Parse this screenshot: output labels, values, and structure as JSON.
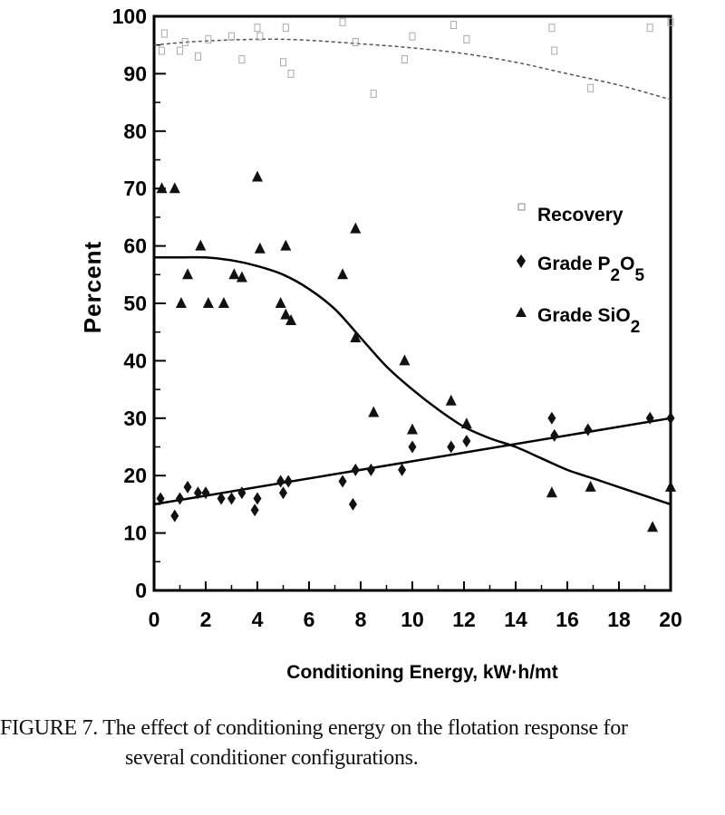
{
  "chart_data": {
    "type": "scatter",
    "title": "",
    "xlabel": "Conditioning Energy, kW·h/mt",
    "ylabel": "Percent",
    "xlim": [
      0,
      20
    ],
    "ylim": [
      0,
      100
    ],
    "xticks": [
      0,
      2,
      4,
      6,
      8,
      10,
      12,
      14,
      16,
      18,
      20
    ],
    "yticks": [
      0,
      10,
      20,
      30,
      40,
      50,
      60,
      70,
      80,
      90,
      100
    ],
    "grid": false,
    "legend_position": "right",
    "series": [
      {
        "name": "Recovery",
        "marker": "square-open",
        "color": "#aaaaaa",
        "points": [
          [
            0.3,
            94
          ],
          [
            0.4,
            97
          ],
          [
            1.0,
            94
          ],
          [
            1.2,
            95.5
          ],
          [
            1.7,
            93
          ],
          [
            2.1,
            96
          ],
          [
            3.0,
            96.5
          ],
          [
            3.4,
            92.5
          ],
          [
            4.0,
            98
          ],
          [
            4.1,
            96.5
          ],
          [
            5.1,
            98
          ],
          [
            5.0,
            92
          ],
          [
            5.3,
            90
          ],
          [
            7.3,
            99
          ],
          [
            7.8,
            95.5
          ],
          [
            8.5,
            86.5
          ],
          [
            9.7,
            92.5
          ],
          [
            10.0,
            96.5
          ],
          [
            11.6,
            98.5
          ],
          [
            12.1,
            96
          ],
          [
            15.4,
            98
          ],
          [
            15.5,
            94
          ],
          [
            16.9,
            87.5
          ],
          [
            19.2,
            98
          ],
          [
            20.0,
            99
          ]
        ],
        "fit": [
          [
            0,
            95
          ],
          [
            2,
            95.7
          ],
          [
            5,
            96
          ],
          [
            8,
            95.2
          ],
          [
            10,
            94.5
          ],
          [
            12,
            93.5
          ],
          [
            14,
            92
          ],
          [
            16,
            90
          ],
          [
            18,
            88
          ],
          [
            20,
            85.5
          ]
        ],
        "fit_style": "dashed"
      },
      {
        "name": "Grade P2O5",
        "marker": "diamond",
        "color": "#111111",
        "points": [
          [
            0.25,
            16
          ],
          [
            0.8,
            13
          ],
          [
            1.0,
            16
          ],
          [
            1.3,
            18
          ],
          [
            1.7,
            17
          ],
          [
            2.0,
            17
          ],
          [
            2.6,
            16
          ],
          [
            3.0,
            16
          ],
          [
            3.4,
            17
          ],
          [
            3.9,
            14
          ],
          [
            4.0,
            16
          ],
          [
            4.9,
            19
          ],
          [
            5.0,
            17
          ],
          [
            5.2,
            19
          ],
          [
            7.3,
            19
          ],
          [
            7.7,
            15
          ],
          [
            7.8,
            21
          ],
          [
            8.4,
            21
          ],
          [
            9.6,
            21
          ],
          [
            10.0,
            25
          ],
          [
            11.5,
            25
          ],
          [
            12.1,
            26
          ],
          [
            15.4,
            30
          ],
          [
            15.5,
            27
          ],
          [
            16.8,
            28
          ],
          [
            19.2,
            30
          ],
          [
            20.0,
            30
          ]
        ],
        "fit": [
          [
            0,
            15
          ],
          [
            20,
            30
          ]
        ],
        "fit_style": "solid"
      },
      {
        "name": "Grade SiO2",
        "marker": "triangle",
        "color": "#111111",
        "points": [
          [
            0.3,
            70
          ],
          [
            0.8,
            70
          ],
          [
            1.05,
            50
          ],
          [
            1.3,
            55
          ],
          [
            1.8,
            60
          ],
          [
            2.1,
            50
          ],
          [
            2.7,
            50
          ],
          [
            3.1,
            55
          ],
          [
            3.4,
            54.5
          ],
          [
            4.0,
            72
          ],
          [
            4.1,
            59.5
          ],
          [
            4.9,
            50
          ],
          [
            5.1,
            60
          ],
          [
            5.1,
            48
          ],
          [
            5.3,
            47
          ],
          [
            7.3,
            55
          ],
          [
            7.8,
            63
          ],
          [
            7.8,
            44
          ],
          [
            8.5,
            31
          ],
          [
            9.7,
            40
          ],
          [
            10.0,
            28
          ],
          [
            11.5,
            33
          ],
          [
            12.1,
            29
          ],
          [
            15.4,
            17
          ],
          [
            16.9,
            18
          ],
          [
            19.3,
            11
          ],
          [
            20.0,
            18
          ]
        ],
        "fit": [
          [
            0,
            58
          ],
          [
            1,
            58
          ],
          [
            2,
            58
          ],
          [
            3,
            57.5
          ],
          [
            4,
            56.5
          ],
          [
            5,
            55
          ],
          [
            6,
            52.5
          ],
          [
            7,
            49
          ],
          [
            8,
            44
          ],
          [
            9,
            39
          ],
          [
            10,
            35
          ],
          [
            11,
            31.5
          ],
          [
            12,
            28.5
          ],
          [
            13,
            26.5
          ],
          [
            14,
            25
          ],
          [
            15,
            23
          ],
          [
            16,
            21
          ],
          [
            17,
            19.5
          ],
          [
            18,
            18
          ],
          [
            19,
            16.5
          ],
          [
            20,
            15
          ]
        ],
        "fit_style": "solid"
      }
    ],
    "legend": [
      {
        "label": "Recovery",
        "sub": ""
      },
      {
        "label": "Grade P",
        "sub": "2",
        "mid": "O",
        "sub2": "5"
      },
      {
        "label": "Grade SiO",
        "sub": "2"
      }
    ]
  },
  "caption": {
    "line1": "FIGURE 7.  The effect of conditioning energy on the flotation response for",
    "line2": "several conditioner configurations."
  }
}
